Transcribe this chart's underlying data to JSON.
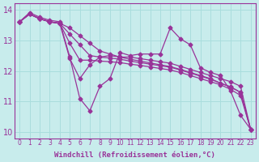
{
  "xlabel": "Windchill (Refroidissement éolien,°C)",
  "bg_color": "#c8ecec",
  "grid_color": "#aadddd",
  "line_color": "#993399",
  "xlim_min": -0.5,
  "xlim_max": 23.5,
  "ylim": [
    9.8,
    14.2
  ],
  "xticks": [
    0,
    1,
    2,
    3,
    4,
    5,
    6,
    7,
    8,
    9,
    10,
    11,
    12,
    13,
    14,
    15,
    16,
    17,
    18,
    19,
    20,
    21,
    22,
    23
  ],
  "yticks": [
    10,
    11,
    12,
    13,
    14
  ],
  "series": [
    [
      13.6,
      13.9,
      13.75,
      13.65,
      13.6,
      12.45,
      11.1,
      10.7,
      11.5,
      11.75,
      12.6,
      12.5,
      12.55,
      12.55,
      12.55,
      13.4,
      13.05,
      12.85,
      12.1,
      11.95,
      11.85,
      11.35,
      10.55,
      10.1
    ],
    [
      13.6,
      13.85,
      13.7,
      13.6,
      13.55,
      12.4,
      11.75,
      12.2,
      12.45,
      12.5,
      12.45,
      12.45,
      12.4,
      12.35,
      12.3,
      12.25,
      12.15,
      12.05,
      11.95,
      11.85,
      11.75,
      11.65,
      11.5,
      10.1
    ],
    [
      13.6,
      13.85,
      13.7,
      13.6,
      13.55,
      12.9,
      12.35,
      12.35,
      12.32,
      12.3,
      12.27,
      12.22,
      12.18,
      12.13,
      12.08,
      12.03,
      11.95,
      11.85,
      11.75,
      11.65,
      11.55,
      11.4,
      11.2,
      10.1
    ],
    [
      13.6,
      13.85,
      13.7,
      13.6,
      13.55,
      13.2,
      12.85,
      12.5,
      12.45,
      12.42,
      12.38,
      12.32,
      12.27,
      12.22,
      12.17,
      12.12,
      12.03,
      11.93,
      11.83,
      11.73,
      11.6,
      11.48,
      11.3,
      10.1
    ],
    [
      13.6,
      13.85,
      13.7,
      13.6,
      13.55,
      13.4,
      13.15,
      12.9,
      12.65,
      12.55,
      12.45,
      12.38,
      12.32,
      12.26,
      12.2,
      12.14,
      12.05,
      11.95,
      11.85,
      11.75,
      11.6,
      11.48,
      11.3,
      10.1
    ]
  ],
  "marker": "D",
  "markersize": 2.5,
  "linewidth": 0.9
}
